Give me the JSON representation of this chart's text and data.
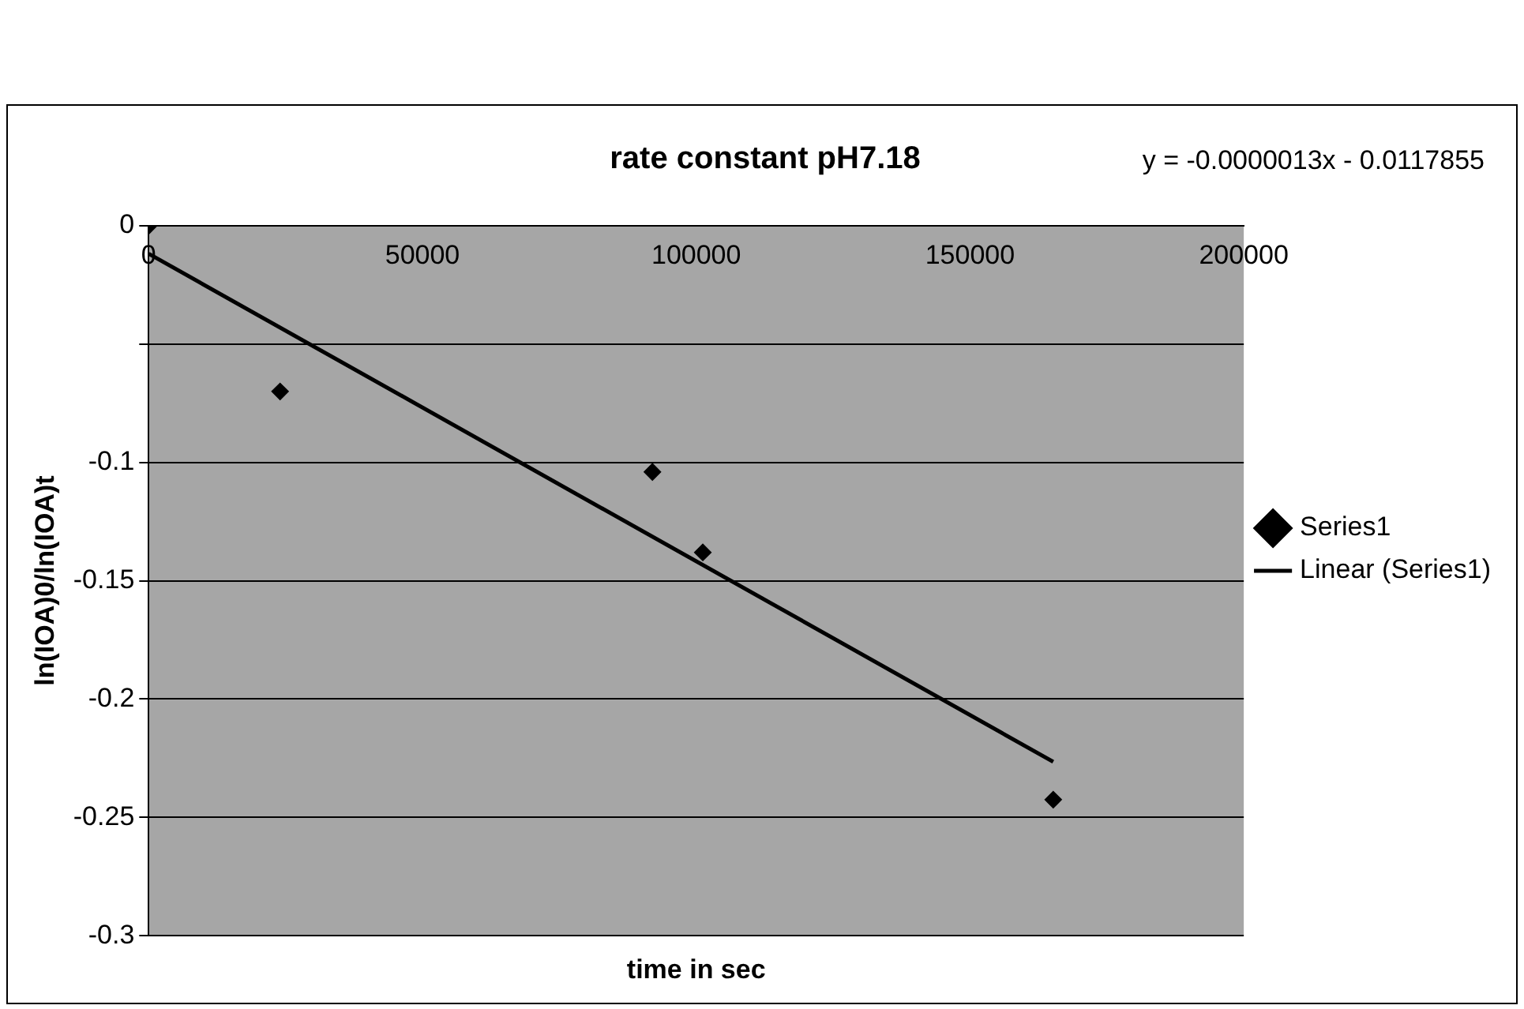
{
  "chart_data": {
    "type": "scatter",
    "title": "rate constant pH7.18",
    "xlabel": "time in sec",
    "ylabel": "ln(IOA)0/ln(IOA)t",
    "annotations": [
      "y = -0.0000013x - 0.0117855"
    ],
    "series": [
      {
        "name": "Series1",
        "color": "#000000",
        "marker": "diamond",
        "x": [
          0,
          24000,
          92000,
          101200,
          165200
        ],
        "values": [
          0,
          -0.07,
          -0.104,
          -0.138,
          -0.2425
        ]
      },
      {
        "name": "Linear (Series1)",
        "type": "line",
        "color": "#000000",
        "marker": "none",
        "line_style": "solid",
        "x": [
          0,
          165200
        ],
        "values": [
          -0.0118,
          -0.2265
        ]
      }
    ],
    "xlim": [
      0,
      200000
    ],
    "xticks": [
      0,
      50000,
      100000,
      150000,
      200000
    ],
    "ylim": [
      -0.3,
      0
    ],
    "yticks": [
      0,
      {
        "value": -0.05,
        "label": null
      },
      -0.1,
      -0.15,
      -0.2,
      -0.25,
      -0.3
    ],
    "grid": "y",
    "legend": "right"
  }
}
